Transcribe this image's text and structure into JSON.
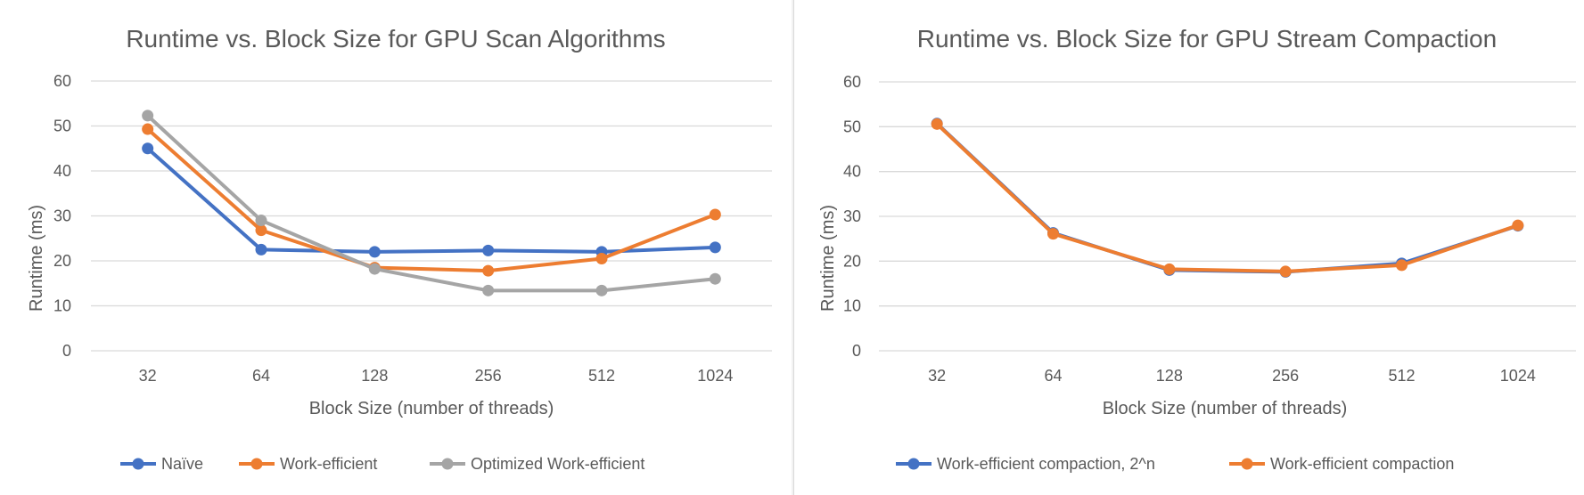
{
  "chart_data": [
    {
      "type": "line",
      "title": "Runtime vs. Block Size for GPU Scan Algorithms",
      "xlabel": "Block Size (number of threads)",
      "ylabel": "Runtime (ms)",
      "categories": [
        "32",
        "64",
        "128",
        "256",
        "512",
        "1024"
      ],
      "ylim": [
        0,
        60
      ],
      "yticks": [
        0,
        10,
        20,
        30,
        40,
        50,
        60
      ],
      "grid": true,
      "legend": "bottom",
      "series": [
        {
          "name": "Naïve",
          "color": "#4472c4",
          "values": [
            45.0,
            22.5,
            22.0,
            22.3,
            22.0,
            23.0
          ]
        },
        {
          "name": "Work-efficient",
          "color": "#ed7d31",
          "values": [
            49.3,
            26.8,
            18.5,
            17.8,
            20.5,
            30.3
          ]
        },
        {
          "name": "Optimized Work-efficient",
          "color": "#a5a5a5",
          "values": [
            52.3,
            29.0,
            18.2,
            13.4,
            13.4,
            16.0
          ]
        }
      ]
    },
    {
      "type": "line",
      "title": "Runtime vs. Block Size for GPU Stream Compaction",
      "xlabel": "Block Size (number of threads)",
      "ylabel": "Runtime (ms)",
      "categories": [
        "32",
        "64",
        "128",
        "256",
        "512",
        "1024"
      ],
      "ylim": [
        0,
        60
      ],
      "yticks": [
        0,
        10,
        20,
        30,
        40,
        50,
        60
      ],
      "grid": true,
      "legend": "bottom",
      "series": [
        {
          "name": "Work-efficient compaction, 2^n",
          "color": "#4472c4",
          "values": [
            50.7,
            26.3,
            18.0,
            17.6,
            19.5,
            27.9
          ]
        },
        {
          "name": "Work-efficient compaction",
          "color": "#ed7d31",
          "values": [
            50.6,
            26.1,
            18.2,
            17.7,
            19.1,
            28.0
          ]
        }
      ]
    }
  ]
}
